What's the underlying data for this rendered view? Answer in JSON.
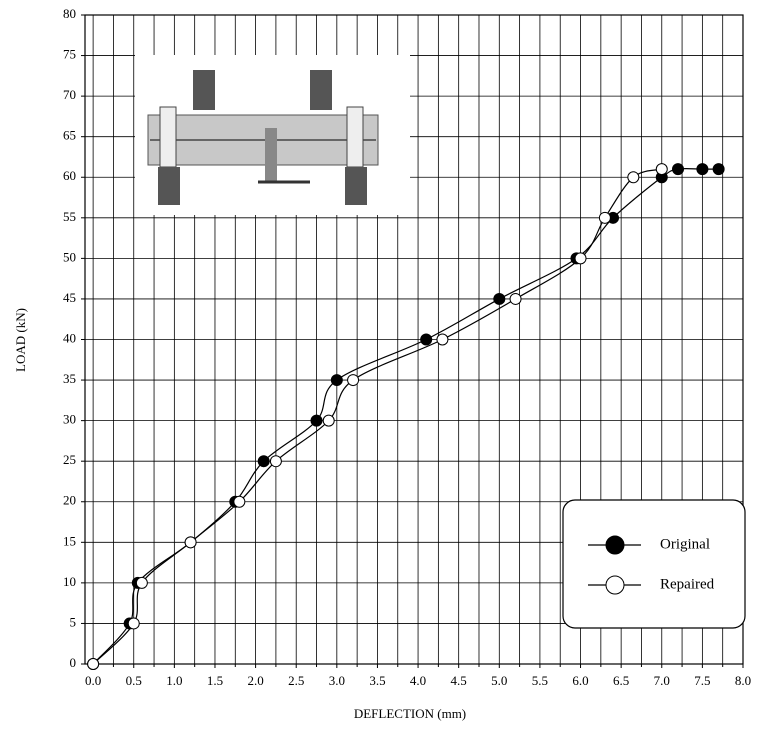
{
  "chart_data": {
    "type": "line",
    "x_label": "DEFLECTION (mm)",
    "y_label": "LOAD (kN)",
    "xlim": [
      -0.1,
      8.0
    ],
    "ylim": [
      0,
      80
    ],
    "xticks": [
      {
        "value": 0,
        "label": "0.0"
      },
      0.5,
      {
        "value": 1,
        "label": "1.0"
      },
      1.5,
      {
        "value": 2,
        "label": "2.0"
      },
      2.5,
      {
        "value": 3,
        "label": "3.0"
      },
      3.5,
      {
        "value": 4,
        "label": "4.0"
      },
      4.5,
      {
        "value": 5,
        "label": "5.0"
      },
      5.5,
      {
        "value": 6,
        "label": "6.0"
      },
      6.5,
      {
        "value": 7,
        "label": "7.0"
      },
      7.5,
      {
        "value": 8,
        "label": "8.0"
      }
    ],
    "xminorticks": [
      0.25,
      0.75,
      1.25,
      1.75,
      2.25,
      2.75,
      3.25,
      3.75,
      4.25,
      4.75,
      5.25,
      5.75,
      6.25,
      6.75,
      7.25,
      7.75
    ],
    "yticks": [
      0,
      5,
      10,
      15,
      20,
      25,
      30,
      35,
      40,
      45,
      50,
      55,
      60,
      65,
      70,
      75,
      80
    ],
    "grid": true,
    "legend": "lower right",
    "series": [
      {
        "name": "Original",
        "color": "#000",
        "marker": "filled",
        "x": [
          0,
          0.45,
          0.55,
          1.2,
          1.75,
          2.1,
          2.75,
          3.0,
          4.1,
          5.0,
          5.95,
          6.4,
          7.0,
          7.2,
          7.5,
          7.7
        ],
        "values": [
          0,
          5,
          10,
          15,
          20,
          25,
          30,
          35,
          40,
          45,
          50,
          55,
          60,
          61,
          61,
          61
        ]
      },
      {
        "name": "Repaired",
        "color": "#000",
        "marker": "open",
        "x": [
          0,
          0.5,
          0.6,
          1.2,
          1.8,
          2.25,
          2.9,
          3.2,
          4.3,
          5.2,
          6.0,
          6.3,
          6.65,
          7.0
        ],
        "values": [
          0,
          5,
          10,
          15,
          20,
          25,
          30,
          35,
          40,
          45,
          50,
          55,
          60,
          61
        ]
      }
    ]
  }
}
